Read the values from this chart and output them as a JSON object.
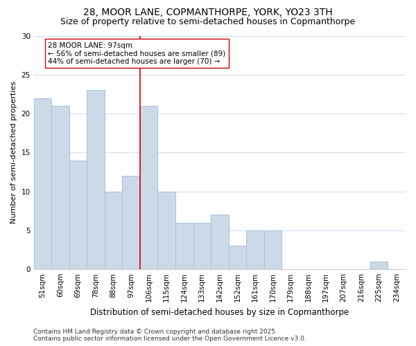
{
  "title": "28, MOOR LANE, COPMANTHORPE, YORK, YO23 3TH",
  "subtitle": "Size of property relative to semi-detached houses in Copmanthorpe",
  "xlabel": "Distribution of semi-detached houses by size in Copmanthorpe",
  "ylabel": "Number of semi-detached properties",
  "categories": [
    "51sqm",
    "60sqm",
    "69sqm",
    "78sqm",
    "88sqm",
    "97sqm",
    "106sqm",
    "115sqm",
    "124sqm",
    "133sqm",
    "142sqm",
    "152sqm",
    "161sqm",
    "170sqm",
    "179sqm",
    "188sqm",
    "197sqm",
    "207sqm",
    "216sqm",
    "225sqm",
    "234sqm"
  ],
  "values": [
    22,
    21,
    14,
    23,
    10,
    12,
    21,
    10,
    6,
    6,
    7,
    3,
    5,
    5,
    0,
    0,
    0,
    0,
    0,
    1,
    0
  ],
  "bar_color": "#ccd9e8",
  "bar_edge_color": "#aac0d8",
  "marker_index": 5,
  "marker_line_color": "#cc0000",
  "annotation_text": "28 MOOR LANE: 97sqm\n← 56% of semi-detached houses are smaller (89)\n44% of semi-detached houses are larger (70) →",
  "annotation_box_color": "#ffffff",
  "annotation_box_edge_color": "#cc0000",
  "ylim": [
    0,
    30
  ],
  "yticks": [
    0,
    5,
    10,
    15,
    20,
    25,
    30
  ],
  "background_color": "#ffffff",
  "grid_color": "#d0e0f0",
  "footer": "Contains HM Land Registry data © Crown copyright and database right 2025.\nContains public sector information licensed under the Open Government Licence v3.0.",
  "title_fontsize": 10,
  "subtitle_fontsize": 9,
  "xlabel_fontsize": 8.5,
  "ylabel_fontsize": 8,
  "tick_fontsize": 7.5,
  "annotation_fontsize": 7.5,
  "footer_fontsize": 6.5
}
